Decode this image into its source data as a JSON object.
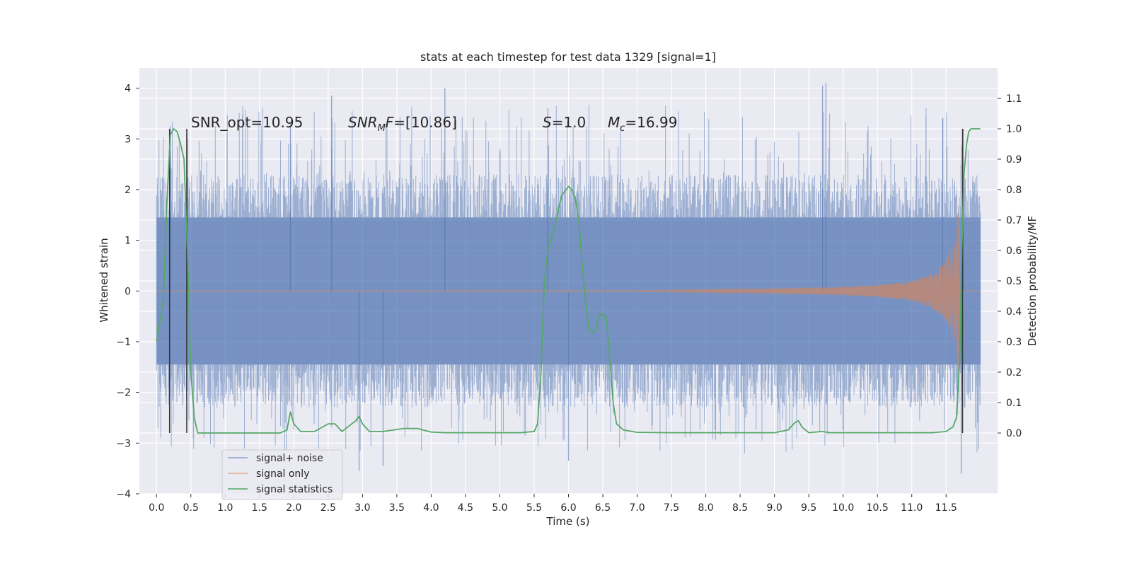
{
  "chart_data": {
    "type": "line",
    "title": "stats at each timestep for test data 1329 [signal=1]",
    "xlabel": "Time (s)",
    "ylabel": "Whitened strain",
    "ylabel_right": "Detection probability/MF",
    "xlim": [
      -0.25,
      12.25
    ],
    "ylim": [
      -4,
      4.4
    ],
    "ylim_right": [
      -0.2,
      1.2
    ],
    "xticks": [
      0.0,
      0.5,
      1.0,
      1.5,
      2.0,
      2.5,
      3.0,
      3.5,
      4.0,
      4.5,
      5.0,
      5.5,
      6.0,
      6.5,
      7.0,
      7.5,
      8.0,
      8.5,
      9.0,
      9.5,
      10.0,
      10.5,
      11.0,
      11.5
    ],
    "xtick_labels": [
      "0.0",
      "0.5",
      "1.0",
      "1.5",
      "2.0",
      "2.5",
      "3.0",
      "3.5",
      "4.0",
      "4.5",
      "5.0",
      "5.5",
      "6.0",
      "6.5",
      "7.0",
      "7.5",
      "8.0",
      "8.5",
      "9.0",
      "9.5",
      "10.0",
      "10.5",
      "11.0",
      "11.5"
    ],
    "yticks": [
      -4,
      -3,
      -2,
      -1,
      0,
      1,
      2,
      3,
      4
    ],
    "ytick_labels": [
      "−4",
      "−3",
      "−2",
      "−1",
      "0",
      "1",
      "2",
      "3",
      "4"
    ],
    "yticks_right": [
      0.0,
      0.1,
      0.2,
      0.3,
      0.4,
      0.5,
      0.6,
      0.7,
      0.8,
      0.9,
      1.0,
      1.1
    ],
    "ytick_right_labels": [
      "0.0",
      "0.1",
      "0.2",
      "0.3",
      "0.4",
      "0.5",
      "0.6",
      "0.7",
      "0.8",
      "0.9",
      "1.0",
      "1.1"
    ],
    "grid": true,
    "legend_position": "lower-left",
    "legend": [
      "signal+ noise",
      "signal only",
      "signal statistics"
    ],
    "colors": {
      "signal_noise": "#4c72b0",
      "signal_only": "#dd8452",
      "statistics": "#55a868",
      "vlines": "#333333",
      "plot_bg": "#eaeaf2",
      "grid": "#ffffff"
    },
    "annotations": [
      {
        "text": "SNR_opt=10.95"
      },
      {
        "text": "SNR_MF=[10.86]"
      },
      {
        "text": "S=1.0"
      },
      {
        "text": "M_c=16.99"
      }
    ],
    "vertical_lines_x": [
      0.19,
      0.44,
      11.74
    ],
    "series": [
      {
        "name": "signal+ noise",
        "axis": "left",
        "x_range": [
          0.0,
          12.0
        ],
        "envelope": {
          "dense_abs": 1.45,
          "frequent_abs": 2.3,
          "peak_max": 4.1,
          "peak_min": -3.6
        }
      },
      {
        "name": "signal only",
        "axis": "left",
        "description_points": {
          "x": [
            0.0,
            7.0,
            8.0,
            9.0,
            10.0,
            10.5,
            11.0,
            11.3,
            11.5,
            11.6,
            11.65,
            11.7
          ],
          "amplitude": [
            0.005,
            0.01,
            0.03,
            0.05,
            0.08,
            0.12,
            0.2,
            0.35,
            0.6,
            0.95,
            1.3,
            2.0
          ]
        }
      },
      {
        "name": "signal statistics",
        "axis": "right",
        "x": [
          0.0,
          0.1,
          0.15,
          0.2,
          0.25,
          0.3,
          0.35,
          0.4,
          0.45,
          0.5,
          0.55,
          0.6,
          0.65,
          1.0,
          1.5,
          1.8,
          1.9,
          1.95,
          2.0,
          2.1,
          2.3,
          2.5,
          2.6,
          2.7,
          2.9,
          2.95,
          3.0,
          3.1,
          3.3,
          3.6,
          3.8,
          4.0,
          4.2,
          5.0,
          5.3,
          5.5,
          5.55,
          5.6,
          5.65,
          5.7,
          5.75,
          5.8,
          5.9,
          6.0,
          6.05,
          6.1,
          6.15,
          6.2,
          6.25,
          6.3,
          6.35,
          6.4,
          6.45,
          6.5,
          6.55,
          6.6,
          6.65,
          6.7,
          6.8,
          7.0,
          7.5,
          8.0,
          8.5,
          9.0,
          9.2,
          9.3,
          9.35,
          9.4,
          9.5,
          9.6,
          9.7,
          9.8,
          10.0,
          10.5,
          11.0,
          11.3,
          11.5,
          11.6,
          11.65,
          11.7,
          11.73,
          11.76,
          11.8,
          11.83,
          11.86,
          11.9,
          12.0
        ],
        "y": [
          0.3,
          0.44,
          0.75,
          0.98,
          1.0,
          0.99,
          0.95,
          0.9,
          0.6,
          0.2,
          0.05,
          0.0,
          0.0,
          0.0,
          0.0,
          0.0,
          0.01,
          0.07,
          0.03,
          0.005,
          0.005,
          0.03,
          0.03,
          0.005,
          0.04,
          0.055,
          0.03,
          0.005,
          0.005,
          0.015,
          0.015,
          0.003,
          0.001,
          0.001,
          0.001,
          0.005,
          0.03,
          0.2,
          0.5,
          0.6,
          0.64,
          0.68,
          0.78,
          0.81,
          0.8,
          0.77,
          0.7,
          0.55,
          0.43,
          0.34,
          0.33,
          0.34,
          0.39,
          0.39,
          0.38,
          0.25,
          0.1,
          0.03,
          0.01,
          0.002,
          0.001,
          0.001,
          0.001,
          0.001,
          0.01,
          0.035,
          0.04,
          0.02,
          0.001,
          0.003,
          0.005,
          0.001,
          0.001,
          0.001,
          0.001,
          0.001,
          0.005,
          0.02,
          0.05,
          0.25,
          0.6,
          0.85,
          0.95,
          0.99,
          1.0,
          1.0,
          1.0
        ]
      }
    ]
  }
}
